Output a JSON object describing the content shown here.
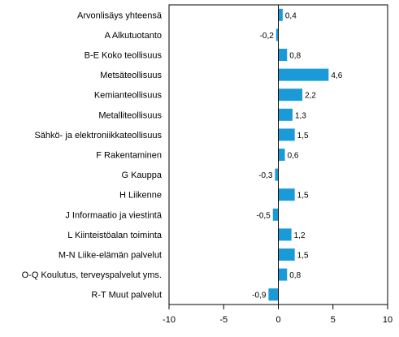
{
  "chart_data": {
    "type": "bar",
    "orientation": "horizontal",
    "title": "",
    "xlabel": "",
    "ylabel": "",
    "xlim": [
      -10,
      10
    ],
    "xticks": [
      "-10",
      "-5",
      "0",
      "5",
      "10"
    ],
    "grid": false,
    "legend": "none",
    "bar_color": "#1a9bd7",
    "categories": [
      "Arvonlisäys yhteensä",
      "A Alkutuotanto",
      "B-E Koko teollisuus",
      "Metsäteollisuus",
      "Kemianteollisuus",
      "Metalliteollisuus",
      "Sähkö- ja elektroniikkateollisuus",
      "F Rakentaminen",
      "G Kauppa",
      "H Liikenne",
      "J Informaatio ja viestintä",
      "L Kiinteistöalan toiminta",
      "M-N Liike-elämän palvelut",
      "O-Q Koulutus, terveyspalvelut yms.",
      "R-T Muut palvelut"
    ],
    "values": [
      0.4,
      -0.2,
      0.8,
      4.6,
      2.2,
      1.3,
      1.5,
      0.6,
      -0.3,
      1.5,
      -0.5,
      1.2,
      1.5,
      0.8,
      -0.9
    ],
    "value_labels": [
      "0,4",
      "-0,2",
      "0,8",
      "4,6",
      "2,2",
      "1,3",
      "1,5",
      "0,6",
      "-0,3",
      "1,5",
      "-0,5",
      "1,2",
      "1,5",
      "0,8",
      "-0,9"
    ]
  }
}
